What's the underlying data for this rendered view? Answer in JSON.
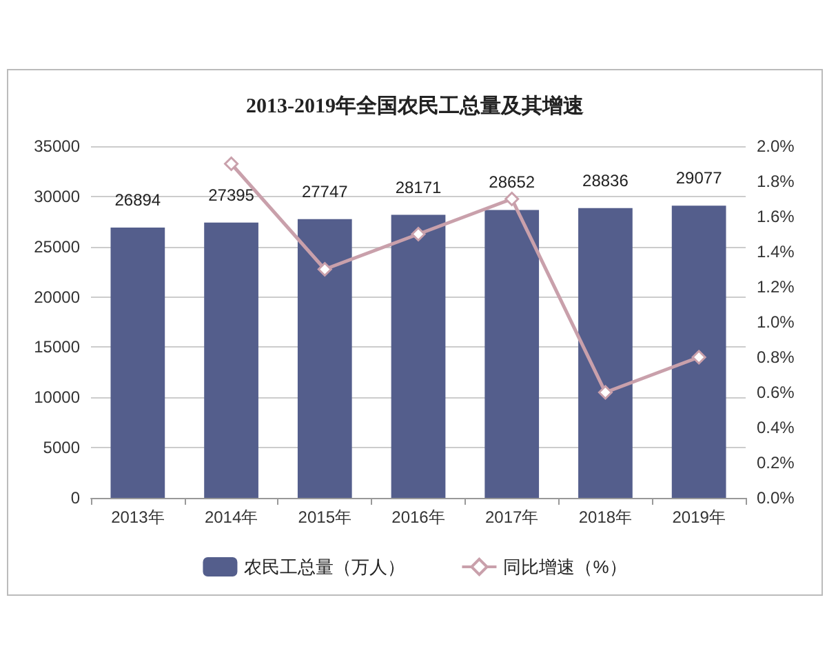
{
  "chart_data": {
    "type": "bar",
    "title": "2013-2019年全国农民工总量及其增速",
    "categories": [
      "2013年",
      "2014年",
      "2015年",
      "2016年",
      "2017年",
      "2018年",
      "2019年"
    ],
    "series": [
      {
        "name": "农民工总量（万人）",
        "color": "#545e8c",
        "values": [
          26894,
          27395,
          27747,
          28171,
          28652,
          28836,
          29077
        ],
        "value_labels": [
          "26894",
          "27395",
          "27747",
          "28171",
          "28652",
          "28836",
          "29077"
        ]
      },
      {
        "name": "同比增速（%）",
        "type": "line",
        "axis": "y2",
        "color": "#c9a0ab",
        "marker": "diamond",
        "values": [
          null,
          1.9,
          1.3,
          1.5,
          1.7,
          0.6,
          0.8
        ]
      }
    ],
    "ylim": [
      0,
      35000
    ],
    "yticks": [
      0,
      5000,
      10000,
      15000,
      20000,
      25000,
      30000,
      35000
    ],
    "y2lim": [
      0,
      2.0
    ],
    "y2ticks": [
      {
        "value": 0,
        "label": "0.0%"
      },
      {
        "value": 0.2,
        "label": "0.2%"
      },
      {
        "value": 0.4,
        "label": "0.4%"
      },
      {
        "value": 0.6,
        "label": "0.6%"
      },
      {
        "value": 0.8,
        "label": "0.8%"
      },
      {
        "value": 1.0,
        "label": "1.0%"
      },
      {
        "value": 1.2,
        "label": "1.2%"
      },
      {
        "value": 1.4,
        "label": "1.4%"
      },
      {
        "value": 1.6,
        "label": "1.6%"
      },
      {
        "value": 1.8,
        "label": "1.8%"
      },
      {
        "value": 2.0,
        "label": "2.0%"
      }
    ],
    "grid": "y",
    "legend": "bottom"
  }
}
